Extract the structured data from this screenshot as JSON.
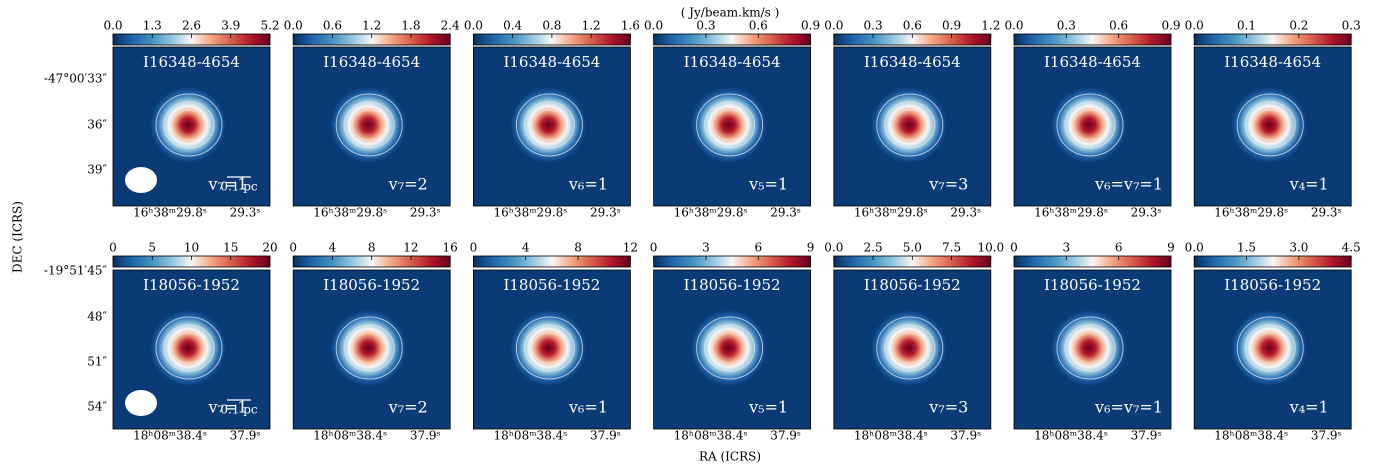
{
  "chart_data": {
    "type": "image_grid",
    "colorbar_label": "( Jy/beam.km/s )",
    "xlabel": "RA (ICRS)",
    "ylabel": "DEC (ICRS)",
    "rows": [
      {
        "yticklabels": [
          "-47°00′33″",
          "36″",
          "39″"
        ],
        "xticklabels": [
          "16ʰ38ᵐ29.8ˢ",
          "29.3ˢ"
        ],
        "scale_bar": "0.1 pc",
        "panels": [
          {
            "title": "I16348-4654",
            "label": "v₇=1",
            "zlim": [
              0,
              5.2
            ],
            "zticks": [
              {
                "value": 0,
                "label": "0.0"
              },
              1.3,
              2.6,
              3.9,
              5.2
            ]
          },
          {
            "title": "I16348-4654",
            "label": "v₇=2",
            "zlim": [
              0,
              2.4
            ],
            "zticks": [
              {
                "value": 0,
                "label": "0.0"
              },
              0.6,
              1.2,
              1.8,
              2.4
            ]
          },
          {
            "title": "I16348-4654",
            "label": "v₆=1",
            "zlim": [
              0,
              1.6
            ],
            "zticks": [
              {
                "value": 0,
                "label": "0.0"
              },
              0.4,
              0.8,
              1.2,
              1.6
            ]
          },
          {
            "title": "I16348-4654",
            "label": "v₅=1",
            "zlim": [
              0,
              0.9
            ],
            "zticks": [
              {
                "value": 0,
                "label": "0.0"
              },
              0.3,
              0.6,
              0.9
            ]
          },
          {
            "title": "I16348-4654",
            "label": "v₇=3",
            "zlim": [
              0,
              1.2
            ],
            "zticks": [
              {
                "value": 0,
                "label": "0.0"
              },
              0.3,
              0.6,
              0.9,
              1.2
            ]
          },
          {
            "title": "I16348-4654",
            "label": "v₆=v₇=1",
            "zlim": [
              0,
              0.9
            ],
            "zticks": [
              {
                "value": 0,
                "label": "0.0"
              },
              0.3,
              0.6,
              0.9
            ]
          },
          {
            "title": "I16348-4654",
            "label": "v₄=1",
            "zlim": [
              0,
              0.3
            ],
            "zticks": [
              {
                "value": 0,
                "label": "0.0"
              },
              0.1,
              0.2,
              0.3
            ]
          }
        ]
      },
      {
        "yticklabels": [
          "-19°51′45″",
          "48″",
          "51″",
          "54″"
        ],
        "xticklabels": [
          "18ʰ08ᵐ38.4ˢ",
          "37.9ˢ"
        ],
        "scale_bar": "0.1 pc",
        "panels": [
          {
            "title": "I18056-1952",
            "label": "v₇=1",
            "zlim": [
              0,
              20
            ],
            "zticks": [
              0,
              5,
              10,
              15,
              20
            ]
          },
          {
            "title": "I18056-1952",
            "label": "v₇=2",
            "zlim": [
              0,
              16
            ],
            "zticks": [
              0,
              4,
              8,
              12,
              16
            ]
          },
          {
            "title": "I18056-1952",
            "label": "v₆=1",
            "zlim": [
              0,
              12
            ],
            "zticks": [
              0,
              4,
              8,
              12
            ]
          },
          {
            "title": "I18056-1952",
            "label": "v₅=1",
            "zlim": [
              0,
              9
            ],
            "zticks": [
              0,
              3,
              6,
              9
            ]
          },
          {
            "title": "I18056-1952",
            "label": "v₇=3",
            "zlim": [
              0,
              10
            ],
            "zticks": [
              {
                "value": 0,
                "label": "0.0"
              },
              2.5,
              {
                "value": 5,
                "label": "5.0"
              },
              7.5,
              {
                "value": 10,
                "label": "10.0"
              }
            ]
          },
          {
            "title": "I18056-1952",
            "label": "v₆=v₇=1",
            "zlim": [
              0,
              9
            ],
            "zticks": [
              0,
              3,
              6,
              9
            ]
          },
          {
            "title": "I18056-1952",
            "label": "v₄=1",
            "zlim": [
              0,
              4.5
            ],
            "zticks": [
              {
                "value": 0,
                "label": "0.0"
              },
              1.5,
              {
                "value": 3,
                "label": "3.0"
              },
              4.5
            ]
          }
        ]
      }
    ]
  }
}
